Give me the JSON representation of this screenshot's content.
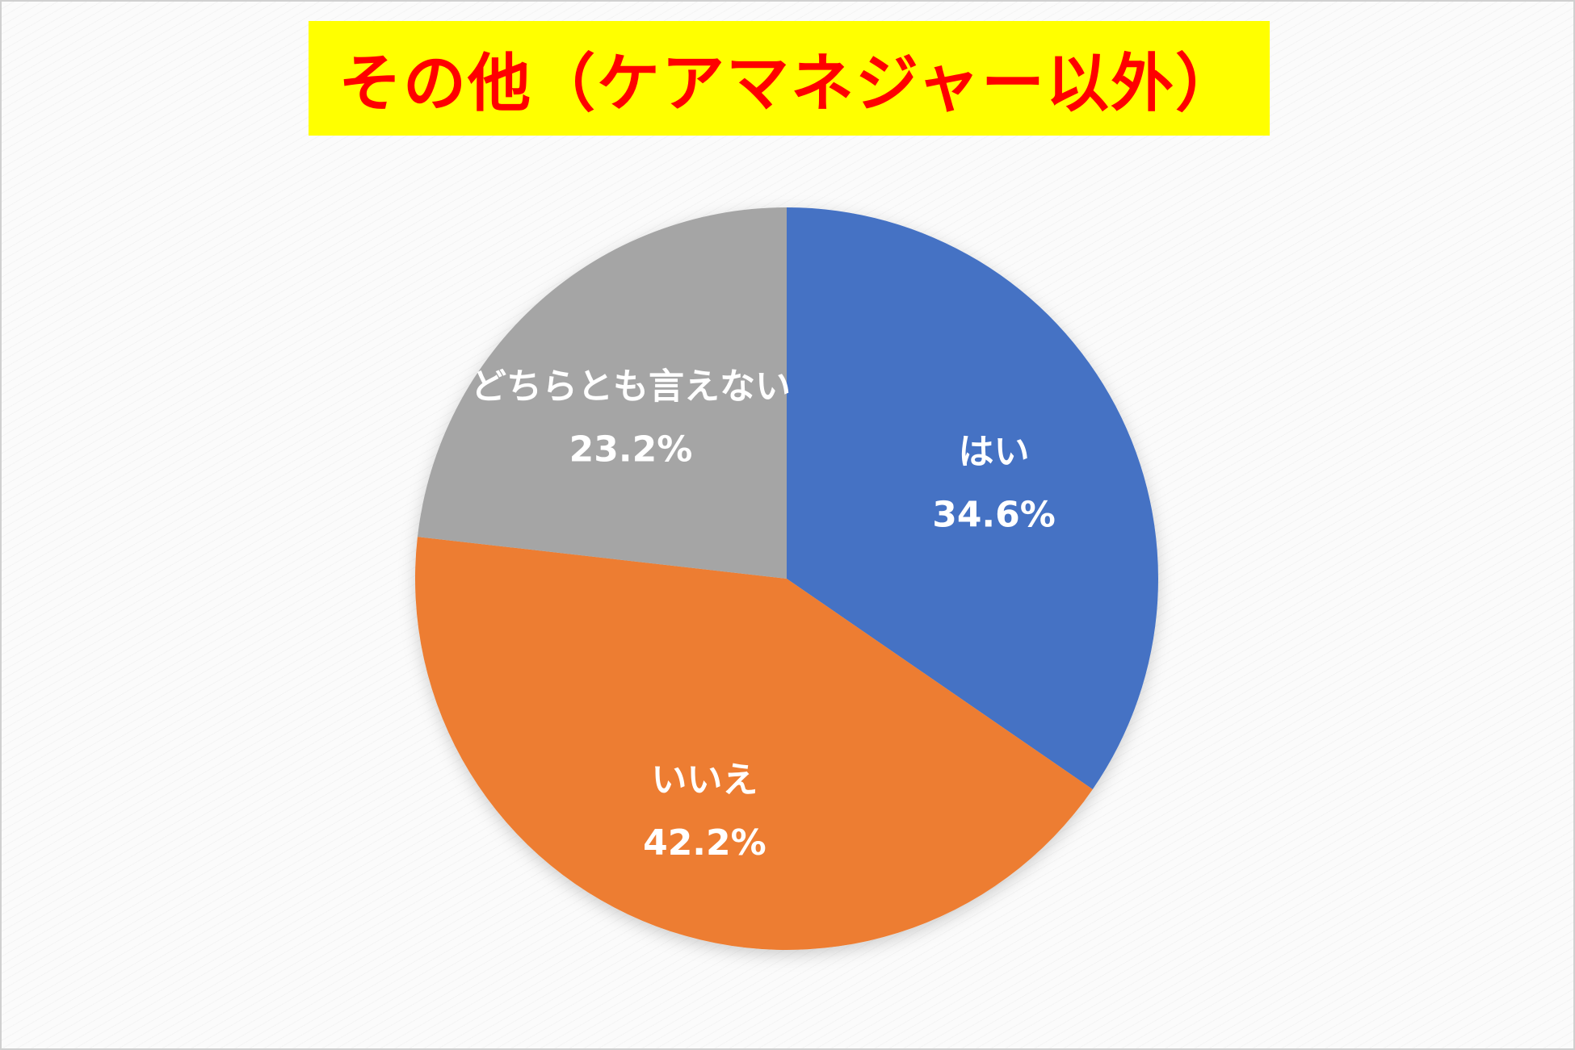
{
  "title": "その他（ケアマネジャー以外）",
  "chart_data": {
    "type": "pie",
    "title": "その他（ケアマネジャー以外）",
    "start_angle_deg": 0,
    "direction": "clockwise",
    "slices": [
      {
        "label": "はい",
        "value": 34.6,
        "value_label": "34.6%",
        "color": "#4472c4"
      },
      {
        "label": "いいえ",
        "value": 42.2,
        "value_label": "42.2%",
        "color": "#ed7d31"
      },
      {
        "label": "どちらとも言えない",
        "value": 23.2,
        "value_label": "23.2%",
        "color": "#a5a5a5"
      }
    ]
  }
}
